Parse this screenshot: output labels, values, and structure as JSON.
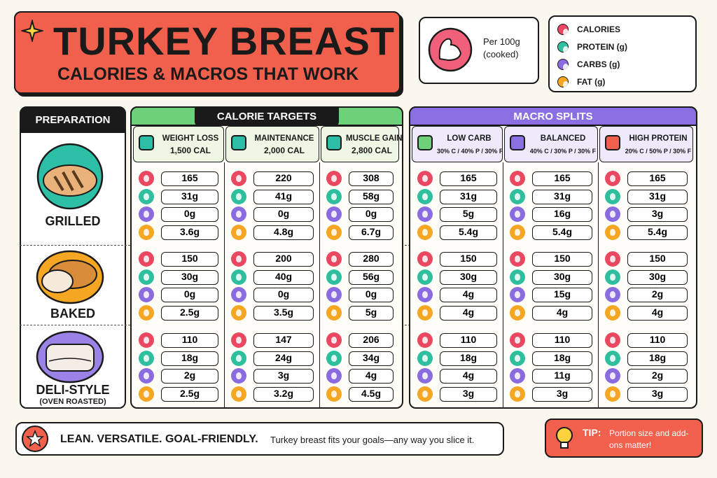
{
  "header": {
    "title": "TURKEY BREAST",
    "subtitle": "CALORIES & MACROS THAT WORK"
  },
  "basis": {
    "amount": "Per 100g",
    "note": "(cooked)"
  },
  "legend": [
    "CALORIES",
    "PROTEIN (g)",
    "CARBS (g)",
    "FAT (g)"
  ],
  "preparation_header": "PREPARATION",
  "preparations": [
    {
      "label": "GRILLED"
    },
    {
      "label": "BAKED"
    },
    {
      "label": "DELI-STYLE",
      "note": "(OVEN ROASTED)"
    }
  ],
  "groups": [
    {
      "title": "CALORIE TARGETS",
      "columns": [
        {
          "name": "WEIGHT LOSS",
          "detail": "1,500 CAL",
          "values": [
            [
              "165",
              "31g",
              "0g",
              "3.6g"
            ],
            [
              "150",
              "30g",
              "0g",
              "2.5g"
            ],
            [
              "110",
              "18g",
              "2g",
              "2.5g"
            ]
          ]
        },
        {
          "name": "MAINTENANCE",
          "detail": "2,000 CAL",
          "values": [
            [
              "220",
              "41g",
              "0g",
              "4.8g"
            ],
            [
              "200",
              "40g",
              "0g",
              "3.5g"
            ],
            [
              "147",
              "24g",
              "3g",
              "3.2g"
            ]
          ]
        },
        {
          "name": "MUSCLE GAIN",
          "detail": "2,800 CAL",
          "values": [
            [
              "308",
              "58g",
              "0g",
              "6.7g"
            ],
            [
              "280",
              "56g",
              "0g",
              "5g"
            ],
            [
              "206",
              "34g",
              "4g",
              "4.5g"
            ]
          ]
        }
      ]
    },
    {
      "title": "MACRO SPLITS",
      "columns": [
        {
          "name": "LOW CARB",
          "detail": "30% C / 40% P / 30% F",
          "values": [
            [
              "165",
              "31g",
              "5g",
              "5.4g"
            ],
            [
              "150",
              "30g",
              "4g",
              "4g"
            ],
            [
              "110",
              "18g",
              "4g",
              "3g"
            ]
          ]
        },
        {
          "name": "BALANCED",
          "detail": "40% C / 30% P / 30% F",
          "values": [
            [
              "165",
              "31g",
              "16g",
              "5.4g"
            ],
            [
              "150",
              "30g",
              "15g",
              "4g"
            ],
            [
              "110",
              "18g",
              "11g",
              "3g"
            ]
          ]
        },
        {
          "name": "HIGH PROTEIN",
          "detail": "20% C / 50% P / 30% F",
          "values": [
            [
              "165",
              "31g",
              "3g",
              "5.4g"
            ],
            [
              "150",
              "30g",
              "2g",
              "4g"
            ],
            [
              "110",
              "18g",
              "2g",
              "3g"
            ]
          ]
        }
      ]
    }
  ],
  "footer": {
    "slogan": "LEAN. VERSATILE. GOAL-FRIENDLY.",
    "text": "Turkey breast fits your goals—any way you slice it.",
    "tip_label": "TIP:",
    "tip_text": "Portion size and add-ons matter!"
  }
}
